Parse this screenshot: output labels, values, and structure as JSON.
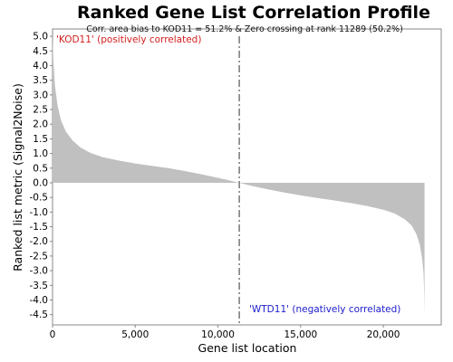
{
  "chart_data": {
    "type": "area",
    "title": "Ranked Gene List Correlation Profile",
    "xlabel": "Gene list location",
    "ylabel": "Ranked list metric (Signal2Noise)",
    "xlim": [
      0,
      23500
    ],
    "ylim": [
      -4.85,
      5.25
    ],
    "x_ticks": [
      0,
      5000,
      10000,
      15000,
      20000
    ],
    "x_tick_labels": [
      "0",
      "5,000",
      "10,000",
      "15,000",
      "20,000"
    ],
    "y_ticks": [
      5.0,
      4.5,
      4.0,
      3.5,
      3.0,
      2.5,
      2.0,
      1.5,
      1.0,
      0.5,
      0.0,
      -0.5,
      -1.0,
      -1.5,
      -2.0,
      -2.5,
      -3.0,
      -3.5,
      -4.0,
      -4.5
    ],
    "y_tick_labels": [
      "5.0",
      "4.5",
      "4.0",
      "3.5",
      "3.0",
      "2.5",
      "2.0",
      "1.5",
      "1.0",
      "0.5",
      "0.0",
      "-0.5",
      "-1.0",
      "-1.5",
      "-2.0",
      "-2.5",
      "-3.0",
      "-3.5",
      "-4.0",
      "-4.5"
    ],
    "fill_color": "#c0c0c0",
    "grid": false,
    "series": [
      {
        "x": [
          0,
          50,
          150,
          300,
          500,
          800,
          1200,
          1700,
          2300,
          3000,
          4000,
          5000,
          6000,
          7000,
          8000,
          9000,
          10000,
          10700,
          11289,
          12000,
          13000,
          14000,
          15000,
          16000,
          17000,
          18000,
          19000,
          20000,
          20700,
          21300,
          21700,
          22000,
          22200,
          22350,
          22430,
          22470,
          22490
        ],
        "y": [
          5.0,
          4.2,
          3.3,
          2.65,
          2.15,
          1.75,
          1.45,
          1.2,
          1.02,
          0.88,
          0.76,
          0.66,
          0.58,
          0.5,
          0.4,
          0.29,
          0.17,
          0.08,
          0.0,
          -0.1,
          -0.22,
          -0.33,
          -0.43,
          -0.52,
          -0.6,
          -0.69,
          -0.79,
          -0.92,
          -1.05,
          -1.25,
          -1.45,
          -1.75,
          -2.1,
          -2.6,
          -3.1,
          -3.8,
          -4.5
        ]
      }
    ],
    "zero_crossing": 11289,
    "annotations": {
      "bias": "Corr. area bias to KOD11 = 51.2% & Zero crossing at rank 11289 (50.2%)",
      "positive": "'KOD11' (positively correlated)",
      "negative": "'WTD11' (negatively correlated)"
    },
    "label_colors": {
      "positive": "#d42020",
      "negative": "#2020cc"
    }
  }
}
